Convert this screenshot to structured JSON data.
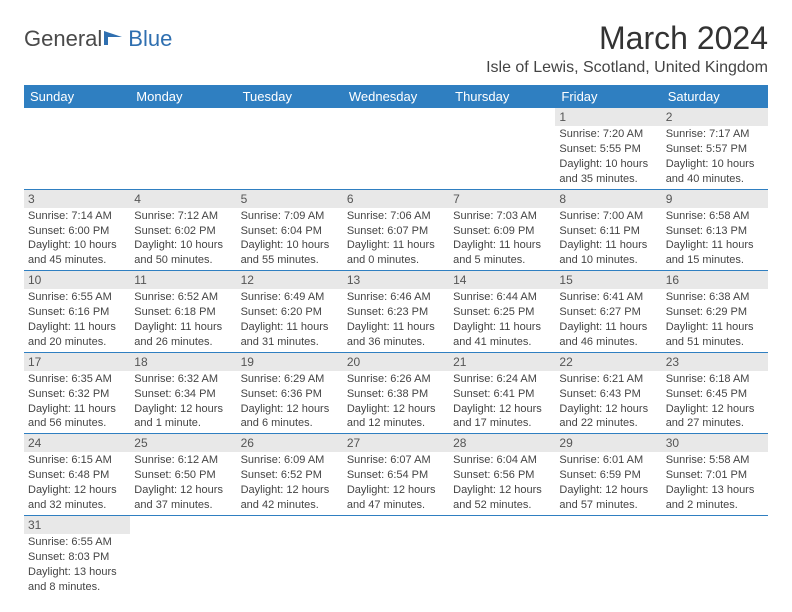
{
  "brand": {
    "part1": "General",
    "part2": "Blue"
  },
  "title": "March 2024",
  "location": "Isle of Lewis, Scotland, United Kingdom",
  "colors": {
    "header_bg": "#2f7fc1",
    "header_fg": "#ffffff",
    "daynum_bg": "#e8e8e8",
    "rule": "#2f7fc1",
    "brand_blue": "#2f6fb0"
  },
  "dayNames": [
    "Sunday",
    "Monday",
    "Tuesday",
    "Wednesday",
    "Thursday",
    "Friday",
    "Saturday"
  ],
  "weeks": [
    [
      null,
      null,
      null,
      null,
      null,
      {
        "n": "1",
        "sunrise": "7:20 AM",
        "sunset": "5:55 PM",
        "daylight": "10 hours and 35 minutes."
      },
      {
        "n": "2",
        "sunrise": "7:17 AM",
        "sunset": "5:57 PM",
        "daylight": "10 hours and 40 minutes."
      }
    ],
    [
      {
        "n": "3",
        "sunrise": "7:14 AM",
        "sunset": "6:00 PM",
        "daylight": "10 hours and 45 minutes."
      },
      {
        "n": "4",
        "sunrise": "7:12 AM",
        "sunset": "6:02 PM",
        "daylight": "10 hours and 50 minutes."
      },
      {
        "n": "5",
        "sunrise": "7:09 AM",
        "sunset": "6:04 PM",
        "daylight": "10 hours and 55 minutes."
      },
      {
        "n": "6",
        "sunrise": "7:06 AM",
        "sunset": "6:07 PM",
        "daylight": "11 hours and 0 minutes."
      },
      {
        "n": "7",
        "sunrise": "7:03 AM",
        "sunset": "6:09 PM",
        "daylight": "11 hours and 5 minutes."
      },
      {
        "n": "8",
        "sunrise": "7:00 AM",
        "sunset": "6:11 PM",
        "daylight": "11 hours and 10 minutes."
      },
      {
        "n": "9",
        "sunrise": "6:58 AM",
        "sunset": "6:13 PM",
        "daylight": "11 hours and 15 minutes."
      }
    ],
    [
      {
        "n": "10",
        "sunrise": "6:55 AM",
        "sunset": "6:16 PM",
        "daylight": "11 hours and 20 minutes."
      },
      {
        "n": "11",
        "sunrise": "6:52 AM",
        "sunset": "6:18 PM",
        "daylight": "11 hours and 26 minutes."
      },
      {
        "n": "12",
        "sunrise": "6:49 AM",
        "sunset": "6:20 PM",
        "daylight": "11 hours and 31 minutes."
      },
      {
        "n": "13",
        "sunrise": "6:46 AM",
        "sunset": "6:23 PM",
        "daylight": "11 hours and 36 minutes."
      },
      {
        "n": "14",
        "sunrise": "6:44 AM",
        "sunset": "6:25 PM",
        "daylight": "11 hours and 41 minutes."
      },
      {
        "n": "15",
        "sunrise": "6:41 AM",
        "sunset": "6:27 PM",
        "daylight": "11 hours and 46 minutes."
      },
      {
        "n": "16",
        "sunrise": "6:38 AM",
        "sunset": "6:29 PM",
        "daylight": "11 hours and 51 minutes."
      }
    ],
    [
      {
        "n": "17",
        "sunrise": "6:35 AM",
        "sunset": "6:32 PM",
        "daylight": "11 hours and 56 minutes."
      },
      {
        "n": "18",
        "sunrise": "6:32 AM",
        "sunset": "6:34 PM",
        "daylight": "12 hours and 1 minute."
      },
      {
        "n": "19",
        "sunrise": "6:29 AM",
        "sunset": "6:36 PM",
        "daylight": "12 hours and 6 minutes."
      },
      {
        "n": "20",
        "sunrise": "6:26 AM",
        "sunset": "6:38 PM",
        "daylight": "12 hours and 12 minutes."
      },
      {
        "n": "21",
        "sunrise": "6:24 AM",
        "sunset": "6:41 PM",
        "daylight": "12 hours and 17 minutes."
      },
      {
        "n": "22",
        "sunrise": "6:21 AM",
        "sunset": "6:43 PM",
        "daylight": "12 hours and 22 minutes."
      },
      {
        "n": "23",
        "sunrise": "6:18 AM",
        "sunset": "6:45 PM",
        "daylight": "12 hours and 27 minutes."
      }
    ],
    [
      {
        "n": "24",
        "sunrise": "6:15 AM",
        "sunset": "6:48 PM",
        "daylight": "12 hours and 32 minutes."
      },
      {
        "n": "25",
        "sunrise": "6:12 AM",
        "sunset": "6:50 PM",
        "daylight": "12 hours and 37 minutes."
      },
      {
        "n": "26",
        "sunrise": "6:09 AM",
        "sunset": "6:52 PM",
        "daylight": "12 hours and 42 minutes."
      },
      {
        "n": "27",
        "sunrise": "6:07 AM",
        "sunset": "6:54 PM",
        "daylight": "12 hours and 47 minutes."
      },
      {
        "n": "28",
        "sunrise": "6:04 AM",
        "sunset": "6:56 PM",
        "daylight": "12 hours and 52 minutes."
      },
      {
        "n": "29",
        "sunrise": "6:01 AM",
        "sunset": "6:59 PM",
        "daylight": "12 hours and 57 minutes."
      },
      {
        "n": "30",
        "sunrise": "5:58 AM",
        "sunset": "7:01 PM",
        "daylight": "13 hours and 2 minutes."
      }
    ],
    [
      {
        "n": "31",
        "sunrise": "6:55 AM",
        "sunset": "8:03 PM",
        "daylight": "13 hours and 8 minutes."
      },
      null,
      null,
      null,
      null,
      null,
      null
    ]
  ],
  "labels": {
    "sunrise": "Sunrise: ",
    "sunset": "Sunset: ",
    "daylight": "Daylight: "
  }
}
